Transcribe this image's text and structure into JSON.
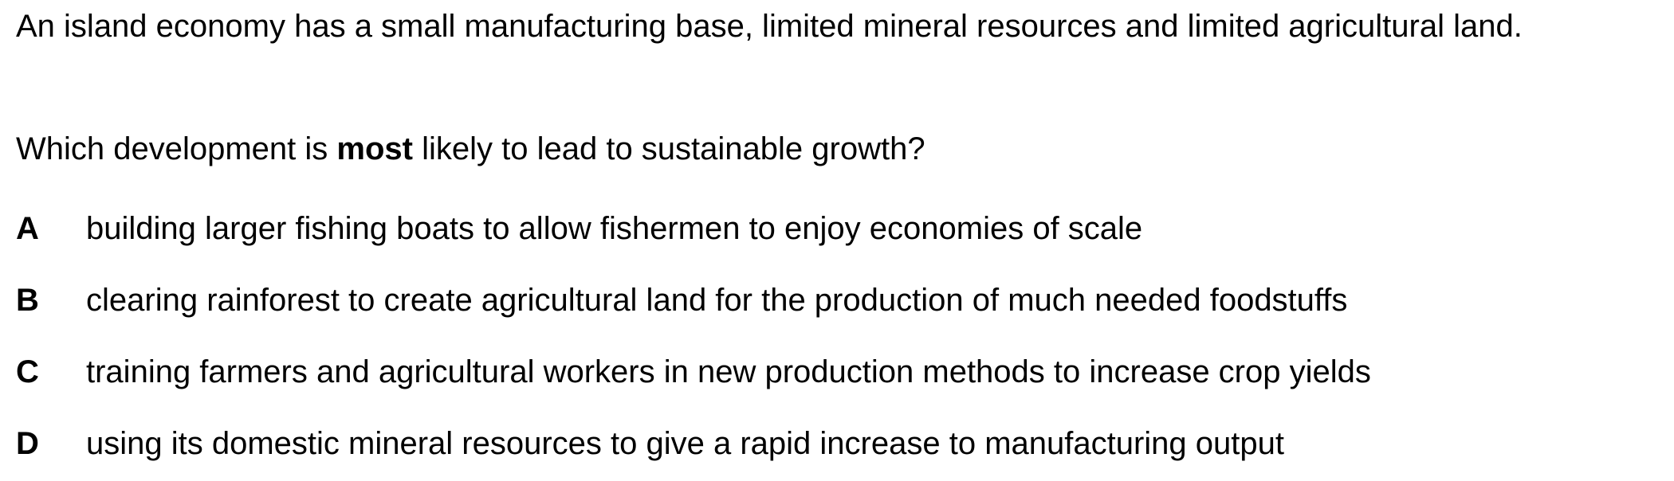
{
  "stem": "An island economy has a small manufacturing base, limited mineral resources and limited agricultural land.",
  "question": {
    "before": "Which development is ",
    "emphasis": "most",
    "after": " likely to lead to sustainable growth?"
  },
  "options": [
    {
      "letter": "A",
      "text": "building larger fishing boats to allow fishermen to enjoy economies of scale"
    },
    {
      "letter": "B",
      "text": "clearing rainforest to create agricultural land for the production of much needed foodstuffs"
    },
    {
      "letter": "C",
      "text": "training farmers and agricultural workers in new production methods to increase crop yields"
    },
    {
      "letter": "D",
      "text": "using its domestic mineral resources to give a rapid increase to manufacturing output"
    }
  ]
}
